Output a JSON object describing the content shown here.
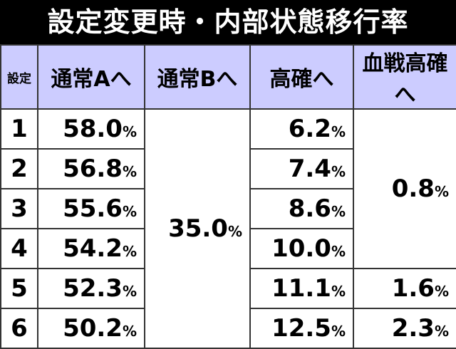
{
  "title": "設定変更時・内部状態移行率",
  "header": [
    "設定",
    "通常Aへ",
    "通常Bへ",
    "高確へ",
    "血戦高確へ"
  ],
  "rows": [
    {
      "setting": "1",
      "normal_a": {
        "value": "58.0",
        "unit": "%"
      },
      "high": {
        "value": "6.2",
        "unit": "%"
      }
    },
    {
      "setting": "2",
      "normal_a": {
        "value": "56.8",
        "unit": "%"
      },
      "high": {
        "value": "7.4",
        "unit": "%"
      }
    },
    {
      "setting": "3",
      "normal_a": {
        "value": "55.6",
        "unit": "%"
      },
      "high": {
        "value": "8.6",
        "unit": "%"
      }
    },
    {
      "setting": "4",
      "normal_a": {
        "value": "54.2",
        "unit": "%"
      },
      "high": {
        "value": "10.0",
        "unit": "%"
      }
    },
    {
      "setting": "5",
      "normal_a": {
        "value": "52.3",
        "unit": "%"
      },
      "high": {
        "value": "11.1",
        "unit": "%"
      }
    },
    {
      "setting": "6",
      "normal_a": {
        "value": "50.2",
        "unit": "%"
      },
      "high": {
        "value": "12.5",
        "unit": "%"
      }
    }
  ],
  "normal_b": {
    "value": "35.0",
    "unit": "%"
  },
  "blood_high": [
    {
      "value": "0.8",
      "unit": "%"
    },
    {
      "value": "1.6",
      "unit": "%"
    },
    {
      "value": "2.3",
      "unit": "%"
    }
  ]
}
